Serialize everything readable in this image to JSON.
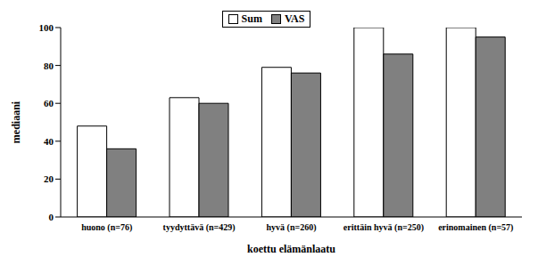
{
  "chart_data": {
    "type": "bar",
    "categories": [
      "huono (n=76)",
      "tyydyttävä (n=429)",
      "hyvä (n=260)",
      "erittäin hyvä (n=250)",
      "erinomainen (n=57)"
    ],
    "series": [
      {
        "name": "Sum",
        "color": "#ffffff",
        "values": [
          48,
          63,
          79,
          100,
          100
        ]
      },
      {
        "name": "VAS",
        "color": "#808080",
        "values": [
          36,
          60,
          76,
          86,
          95
        ]
      }
    ],
    "x_label": "koettu elämänlaatu",
    "y_label": "mediaani",
    "ylim": [
      0,
      100
    ],
    "yticks": [
      0,
      20,
      40,
      60,
      80,
      100
    ],
    "grid": false,
    "legend": "top"
  }
}
